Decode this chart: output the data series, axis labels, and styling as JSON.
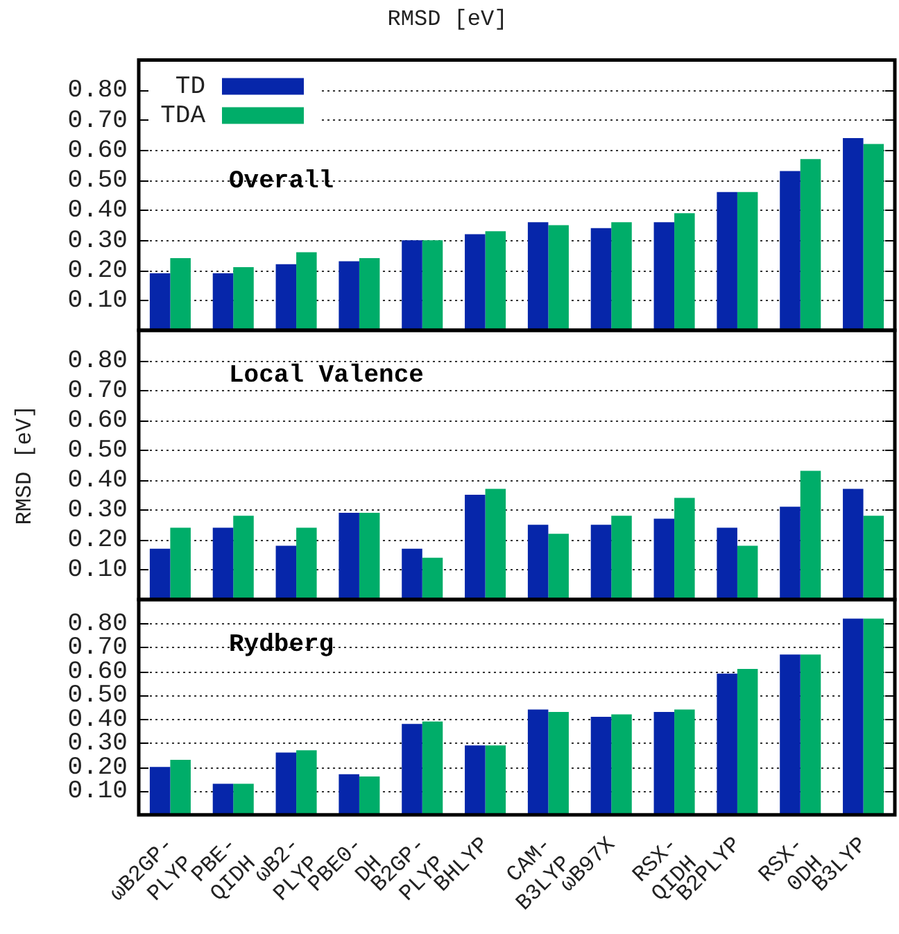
{
  "chart_data": [
    {
      "type": "bar",
      "title": "RMSD [eV]",
      "categories": [
        null,
        null,
        null,
        null,
        null,
        null,
        null,
        null,
        null,
        null,
        null,
        null
      ],
      "series": [
        {
          "name": "TD",
          "color": "#0626aa",
          "values": [
            0.19,
            0.19,
            0.22,
            0.23,
            0.3,
            0.32,
            0.36,
            0.34,
            0.36,
            0.46,
            0.53,
            0.64
          ]
        },
        {
          "name": "TDA",
          "color": "#00ad69",
          "values": [
            0.24,
            0.21,
            0.26,
            0.24,
            0.3,
            0.33,
            0.35,
            0.36,
            0.39,
            0.46,
            0.57,
            0.62
          ]
        }
      ],
      "ylim": [
        0,
        0.9
      ],
      "yticks": [
        {
          "value": 0.1,
          "label": "0.10"
        },
        {
          "value": 0.2,
          "label": "0.20"
        },
        {
          "value": 0.3,
          "label": "0.30"
        },
        {
          "value": 0.4,
          "label": "0.40"
        },
        {
          "value": 0.5,
          "label": "0.50"
        },
        {
          "value": 0.6,
          "label": "0.60"
        },
        {
          "value": 0.7,
          "label": "0.70"
        },
        {
          "value": 0.8,
          "label": "0.80"
        }
      ],
      "grid": "y",
      "legend": "top left",
      "tick_labels": "y",
      "annotations": [
        "Overall"
      ]
    },
    {
      "type": "bar",
      "ylabel": "RMSD [eV]",
      "categories": [
        null,
        null,
        null,
        null,
        null,
        null,
        null,
        null,
        null,
        null,
        null,
        null
      ],
      "series": [
        {
          "color": "#0626aa",
          "values": [
            0.17,
            0.24,
            0.18,
            0.29,
            0.17,
            0.35,
            0.25,
            0.25,
            0.27,
            0.24,
            0.31,
            0.37
          ]
        },
        {
          "color": "#00ad69",
          "values": [
            0.24,
            0.28,
            0.24,
            0.29,
            0.14,
            0.37,
            0.22,
            0.28,
            0.34,
            0.18,
            0.43,
            0.28
          ]
        }
      ],
      "ylim": [
        0,
        0.9
      ],
      "yticks": [
        {
          "value": 0.1,
          "label": "0.10"
        },
        {
          "value": 0.2,
          "label": "0.20"
        },
        {
          "value": 0.3,
          "label": "0.30"
        },
        {
          "value": 0.4,
          "label": "0.40"
        },
        {
          "value": 0.5,
          "label": "0.50"
        },
        {
          "value": 0.6,
          "label": "0.60"
        },
        {
          "value": 0.7,
          "label": "0.70"
        },
        {
          "value": 0.8,
          "label": "0.80"
        }
      ],
      "grid": "y",
      "tick_labels": "y",
      "annotations": [
        "Local Valence"
      ]
    },
    {
      "type": "bar",
      "categories": [
        "ωB2GP-PLYP",
        "PBE-QIDH",
        "ωB2-PLYP",
        "PBE0-DH",
        "B2GP-PLYP",
        "BHLYP",
        "CAM-B3LYP",
        "ωB97X",
        "RSX-QIDH",
        "B2PLYP",
        "RSX-0DH",
        "B3LYP"
      ],
      "series": [
        {
          "color": "#0626aa",
          "values": [
            0.2,
            0.13,
            0.26,
            0.17,
            0.38,
            0.29,
            0.44,
            0.41,
            0.43,
            0.59,
            0.67,
            0.82
          ]
        },
        {
          "color": "#00ad69",
          "values": [
            0.23,
            0.13,
            0.27,
            0.16,
            0.39,
            0.29,
            0.43,
            0.42,
            0.44,
            0.61,
            0.67,
            0.82
          ]
        }
      ],
      "ylim": [
        0,
        0.9
      ],
      "yticks": [
        {
          "value": 0.1,
          "label": "0.10"
        },
        {
          "value": 0.2,
          "label": "0.20"
        },
        {
          "value": 0.3,
          "label": "0.30"
        },
        {
          "value": 0.4,
          "label": "0.40"
        },
        {
          "value": 0.5,
          "label": "0.50"
        },
        {
          "value": 0.6,
          "label": "0.60"
        },
        {
          "value": 0.7,
          "label": "0.70"
        },
        {
          "value": 0.8,
          "label": "0.80"
        }
      ],
      "grid": "y",
      "annotations": [
        "Rydberg"
      ]
    }
  ]
}
